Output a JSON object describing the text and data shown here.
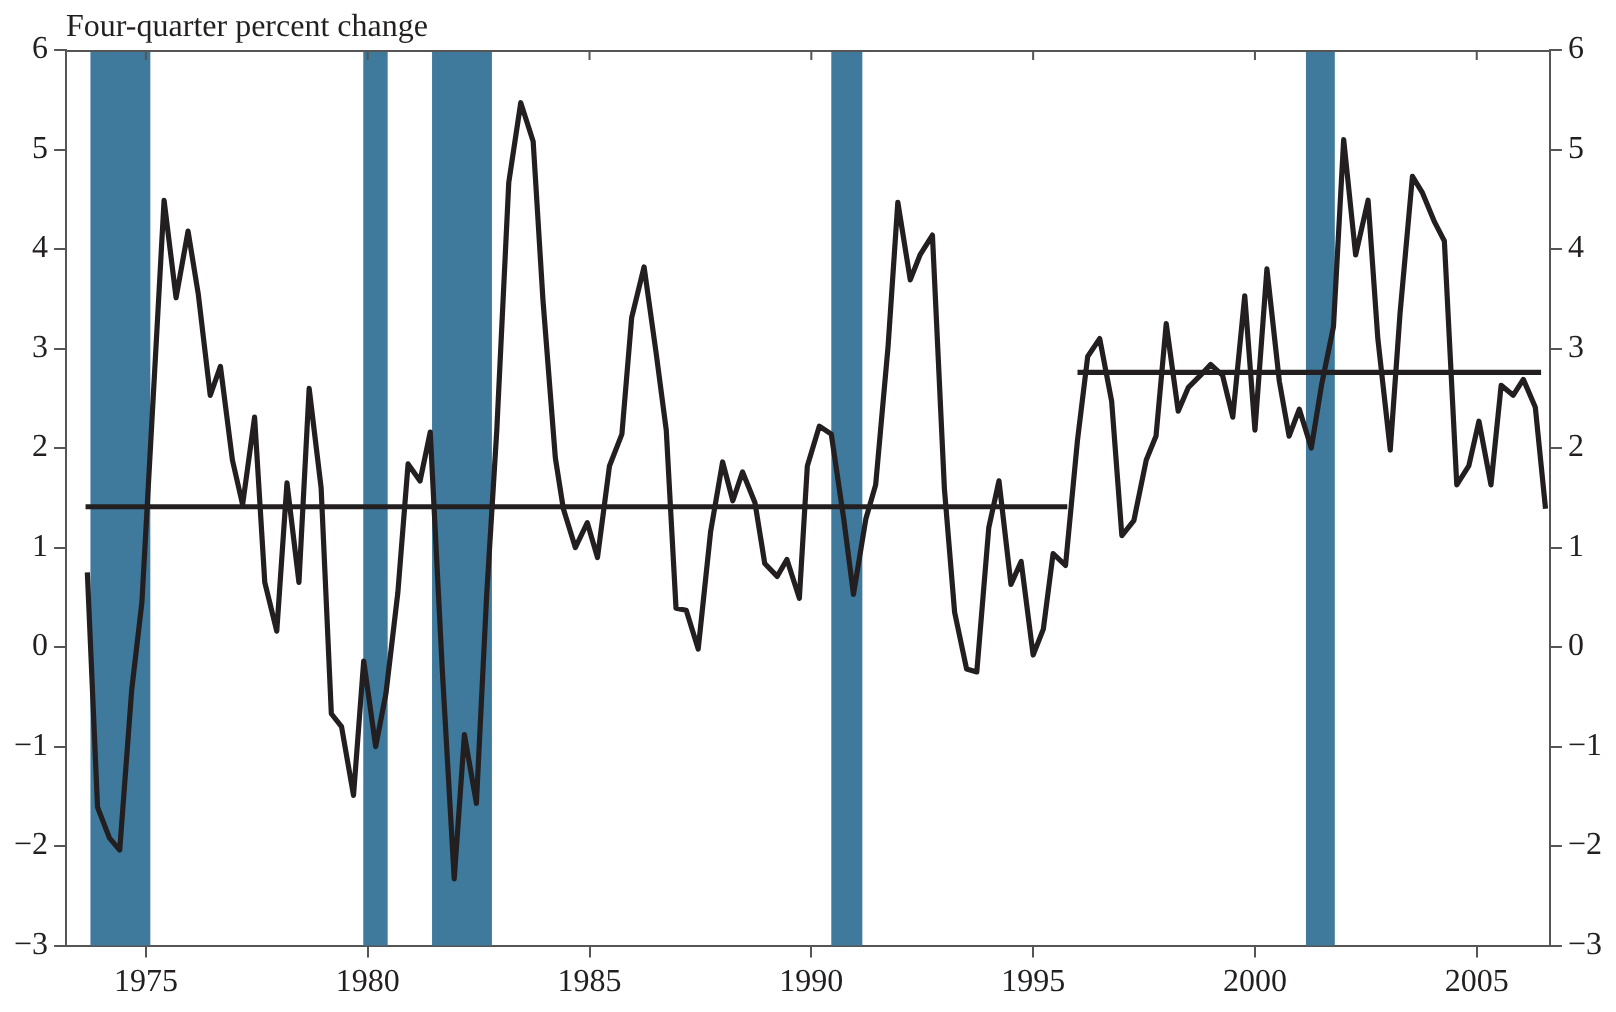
{
  "chart_data": {
    "type": "line",
    "ylabel": "Four-quarter percent change",
    "xlim": [
      1973.2,
      2006.65
    ],
    "xticks": [
      1975,
      1980,
      1985,
      1990,
      1995,
      2000,
      2005
    ],
    "ylim": [
      -3,
      6
    ],
    "yticks": [
      -3,
      -2,
      -1,
      0,
      1,
      2,
      3,
      4,
      5,
      6
    ],
    "y2lim": [
      -3,
      6
    ],
    "y2ticks": [
      -3,
      -2,
      -1,
      0,
      1,
      2,
      3,
      4,
      5,
      6
    ],
    "grid": false,
    "legend": false,
    "marker": "none",
    "line_style": "solid",
    "bands": [
      {
        "axis": "x",
        "from": 1973.75,
        "to": 1975.1,
        "color": "#3f7a9c"
      },
      {
        "axis": "x",
        "from": 1979.9,
        "to": 1980.45,
        "color": "#3f7a9c"
      },
      {
        "axis": "x",
        "from": 1981.45,
        "to": 1982.8,
        "color": "#3f7a9c"
      },
      {
        "axis": "x",
        "from": 1990.45,
        "to": 1991.15,
        "color": "#3f7a9c"
      },
      {
        "axis": "x",
        "from": 2001.15,
        "to": 2001.8,
        "color": "#3f7a9c"
      }
    ],
    "series": [
      {
        "color": "#231f20",
        "x": [
          1973.68,
          1973.91,
          1974.18,
          1974.41,
          1974.68,
          1974.91,
          1975.41,
          1975.68,
          1975.95,
          1976.18,
          1976.45,
          1976.68,
          1976.95,
          1977.18,
          1977.45,
          1977.68,
          1977.95,
          1978.18,
          1978.45,
          1978.68,
          1978.95,
          1979.18,
          1979.41,
          1979.68,
          1979.91,
          1980.18,
          1980.41,
          1980.68,
          1980.91,
          1981.18,
          1981.41,
          1981.68,
          1981.95,
          1982.18,
          1982.45,
          1982.68,
          1982.91,
          1983.18,
          1983.45,
          1983.73,
          1983.95,
          1984.23,
          1984.41,
          1984.68,
          1984.95,
          1985.18,
          1985.45,
          1985.73,
          1985.95,
          1986.23,
          1986.5,
          1986.73,
          1986.95,
          1987.18,
          1987.45,
          1987.73,
          1988.0,
          1988.23,
          1988.45,
          1988.73,
          1988.95,
          1989.23,
          1989.45,
          1989.73,
          1989.91,
          1990.18,
          1990.45,
          1990.73,
          1990.95,
          1991.23,
          1991.45,
          1991.73,
          1991.95,
          1992.23,
          1992.45,
          1992.73,
          1993.0,
          1993.23,
          1993.5,
          1993.73,
          1994.0,
          1994.23,
          1994.5,
          1994.73,
          1995.0,
          1995.23,
          1995.45,
          1995.73,
          1996.0,
          1996.23,
          1996.5,
          1996.77,
          1997.0,
          1997.27,
          1997.55,
          1997.77,
          1998.0,
          1998.27,
          1998.5,
          1998.77,
          1999.0,
          1999.27,
          1999.5,
          1999.77,
          2000.0,
          2000.27,
          2000.55,
          2000.77,
          2001.0,
          2001.27,
          2001.5,
          2001.77,
          2002.0,
          2002.27,
          2002.55,
          2002.77,
          2003.05,
          2003.27,
          2003.55,
          2003.77,
          2004.05,
          2004.27,
          2004.55,
          2004.82,
          2005.05,
          2005.32,
          2005.55,
          2005.82,
          2006.05,
          2006.32,
          2006.55
        ],
        "values": [
          0.75,
          -1.61,
          -1.92,
          -2.04,
          -0.43,
          0.45,
          4.49,
          3.51,
          4.18,
          3.55,
          2.53,
          2.82,
          1.88,
          1.43,
          2.31,
          0.65,
          0.16,
          1.65,
          0.65,
          2.6,
          1.6,
          -0.67,
          -0.8,
          -1.49,
          -0.14,
          -1.0,
          -0.47,
          0.55,
          1.84,
          1.67,
          2.16,
          -0.22,
          -2.33,
          -0.88,
          -1.57,
          0.51,
          2.18,
          4.67,
          5.47,
          5.08,
          3.49,
          1.9,
          1.39,
          1.0,
          1.25,
          0.9,
          1.82,
          2.14,
          3.31,
          3.82,
          2.96,
          2.18,
          0.39,
          0.37,
          -0.02,
          1.16,
          1.86,
          1.47,
          1.76,
          1.45,
          0.84,
          0.71,
          0.88,
          0.49,
          1.82,
          2.22,
          2.14,
          1.29,
          0.53,
          1.29,
          1.63,
          3.02,
          4.47,
          3.69,
          3.94,
          4.14,
          1.59,
          0.35,
          -0.22,
          -0.25,
          1.2,
          1.67,
          0.63,
          0.86,
          -0.08,
          0.18,
          0.94,
          0.82,
          2.08,
          2.92,
          3.1,
          2.47,
          1.12,
          1.27,
          1.88,
          2.12,
          3.25,
          2.37,
          2.61,
          2.73,
          2.84,
          2.73,
          2.31,
          3.53,
          2.18,
          3.8,
          2.67,
          2.12,
          2.39,
          2.0,
          2.63,
          3.22,
          5.1,
          3.94,
          4.49,
          3.1,
          1.98,
          3.35,
          4.73,
          4.57,
          4.27,
          4.08,
          1.63,
          1.82,
          2.27,
          1.63,
          2.63,
          2.53,
          2.69,
          2.41,
          1.39
        ]
      },
      {
        "type": "line",
        "color": "#231f20",
        "x": [
          1973.64,
          1995.77
        ],
        "values": [
          1.41,
          1.41
        ]
      },
      {
        "type": "line",
        "color": "#231f20",
        "x": [
          1996.0,
          2006.45
        ],
        "values": [
          2.76,
          2.76
        ]
      }
    ]
  }
}
